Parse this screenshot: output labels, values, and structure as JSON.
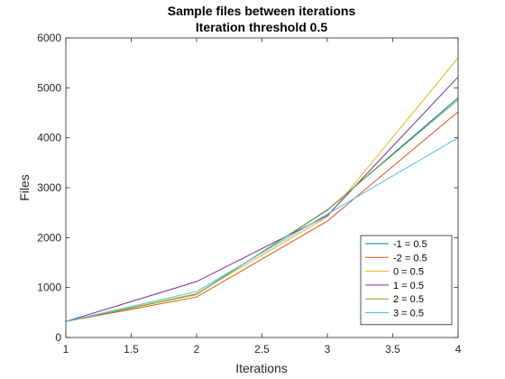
{
  "chart_data": {
    "type": "line",
    "title": [
      "Sample files between iterations",
      "Iteration threshold 0.5"
    ],
    "xlabel": "Iterations",
    "ylabel": "Files",
    "x": [
      1,
      2,
      3,
      4
    ],
    "xlim": [
      1,
      4
    ],
    "ylim": [
      0,
      6000
    ],
    "xticks": [
      1,
      1.5,
      2,
      2.5,
      3,
      3.5,
      4
    ],
    "xtick_labels": [
      "1",
      "1.5",
      "2",
      "2.5",
      "3",
      "3.5",
      "4"
    ],
    "yticks": [
      0,
      1000,
      2000,
      3000,
      4000,
      5000,
      6000
    ],
    "ytick_labels": [
      "0",
      "1000",
      "2000",
      "3000",
      "4000",
      "5000",
      "6000"
    ],
    "grid": false,
    "legend_position": "bottom-right",
    "series": [
      {
        "name": "-1 = 0.5",
        "color": "#0072BD",
        "values": [
          320,
          870,
          2550,
          4800
        ]
      },
      {
        "name": "-2 = 0.5",
        "color": "#D95319",
        "values": [
          320,
          810,
          2330,
          4520
        ]
      },
      {
        "name": "0 = 0.5",
        "color": "#EDB120",
        "values": [
          320,
          880,
          2420,
          5600
        ]
      },
      {
        "name": "1 = 0.5",
        "color": "#7E2F8E",
        "values": [
          320,
          1120,
          2440,
          5220
        ]
      },
      {
        "name": "2 = 0.5",
        "color": "#77AC30",
        "values": [
          320,
          860,
          2560,
          4760
        ]
      },
      {
        "name": "3 = 0.5",
        "color": "#4DBEEE",
        "values": [
          320,
          920,
          2470,
          4000
        ]
      }
    ]
  }
}
